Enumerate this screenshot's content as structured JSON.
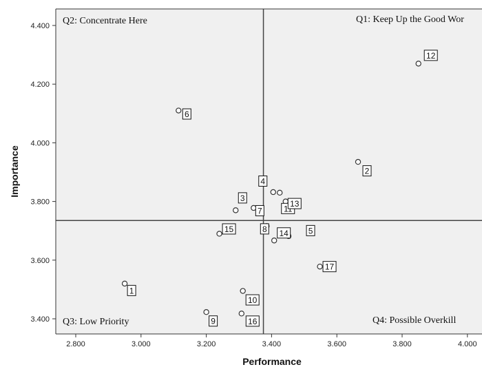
{
  "chart_data": {
    "type": "scatter",
    "title": "",
    "xlabel": "Performance",
    "ylabel": "Importance",
    "xlim": [
      2.75,
      4.07
    ],
    "ylim": [
      3.35,
      4.46
    ],
    "xticks": [
      "2.800",
      "3.000",
      "3.200",
      "3.400",
      "3.600",
      "3.800",
      "4.000"
    ],
    "yticks": [
      "3.400",
      "3.600",
      "3.800",
      "4.000",
      "4.200",
      "4.400"
    ],
    "ref_lines": {
      "x": 3.375,
      "y": 3.735
    },
    "quadrant_labels": {
      "q1": "Q1: Keep Up the Good Wor",
      "q2": "Q2: Concentrate Here",
      "q3": "Q3: Low Priority",
      "q4": "Q4: Possible Overkill"
    },
    "grid": false,
    "legend": "none",
    "colors": {
      "plot_bg": "#f0f0f0",
      "marker": "#333333",
      "line": "#444444"
    },
    "points": [
      {
        "label": "1",
        "x": 2.95,
        "y": 3.52
      },
      {
        "label": "2",
        "x": 3.665,
        "y": 3.935
      },
      {
        "label": "3",
        "x": 3.29,
        "y": 3.77
      },
      {
        "label": "4",
        "x": 3.405,
        "y": 3.832
      },
      {
        "label": "5",
        "x": 3.452,
        "y": 3.682
      },
      {
        "label": "6",
        "x": 3.115,
        "y": 4.11
      },
      {
        "label": "7",
        "x": 3.345,
        "y": 3.778
      },
      {
        "label": "8",
        "x": 3.385,
        "y": 3.716
      },
      {
        "label": "9",
        "x": 3.2,
        "y": 3.423
      },
      {
        "label": "10",
        "x": 3.312,
        "y": 3.495
      },
      {
        "label": "11",
        "x": 3.425,
        "y": 3.83
      },
      {
        "label": "12",
        "x": 3.85,
        "y": 4.27
      },
      {
        "label": "13",
        "x": 3.443,
        "y": 3.8
      },
      {
        "label": "14",
        "x": 3.408,
        "y": 3.667
      },
      {
        "label": "15",
        "x": 3.24,
        "y": 3.69
      },
      {
        "label": "16",
        "x": 3.308,
        "y": 3.418
      },
      {
        "label": "17",
        "x": 3.548,
        "y": 3.578
      }
    ]
  }
}
